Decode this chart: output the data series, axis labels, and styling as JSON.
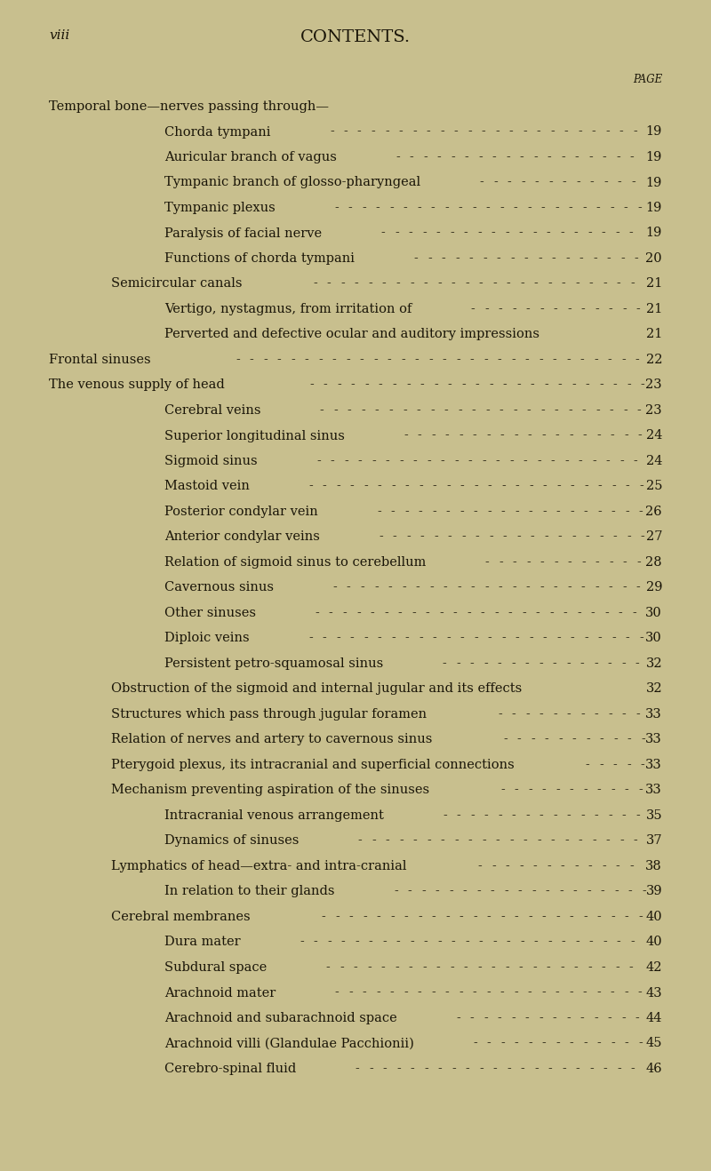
{
  "background_color": "#c8bf8e",
  "page_num": "viii",
  "title": "CONTENTS.",
  "page_label": "PAGE",
  "entries": [
    {
      "text": "Temporal bone—nerves passing through—",
      "indent": 0,
      "page": "",
      "dots": false
    },
    {
      "text": "Chorda tympani",
      "indent": 2,
      "page": "19",
      "dots": true
    },
    {
      "text": "Auricular branch of vagus",
      "indent": 2,
      "page": "19",
      "dots": true
    },
    {
      "text": "Tympanic branch of glosso-pharyngeal",
      "indent": 2,
      "page": "19",
      "dots": true
    },
    {
      "text": "Tympanic plexus",
      "indent": 2,
      "page": "19",
      "dots": true
    },
    {
      "text": "Paralysis of facial nerve",
      "indent": 2,
      "page": "19",
      "dots": true
    },
    {
      "text": "Functions of chorda tympani",
      "indent": 2,
      "page": "20",
      "dots": true
    },
    {
      "text": "Semicircular canals",
      "indent": 1,
      "page": "21",
      "dots": true
    },
    {
      "text": "Vertigo, nystagmus, from irritation of",
      "indent": 2,
      "page": "21",
      "dots": true
    },
    {
      "text": "Perverted and defective ocular and auditory impressions",
      "indent": 2,
      "page": "21",
      "dots": false
    },
    {
      "text": "Frontal sinuses",
      "indent": 0,
      "page": "22",
      "dots": true
    },
    {
      "text": "The venous supply of head",
      "indent": 0,
      "page": "23",
      "dots": true
    },
    {
      "text": "Cerebral veins",
      "indent": 2,
      "page": "23",
      "dots": true
    },
    {
      "text": "Superior longitudinal sinus",
      "indent": 2,
      "page": "24",
      "dots": true
    },
    {
      "text": "Sigmoid sinus",
      "indent": 2,
      "page": "24",
      "dots": true
    },
    {
      "text": "Mastoid vein",
      "indent": 2,
      "page": "25",
      "dots": true
    },
    {
      "text": "Posterior condylar vein",
      "indent": 2,
      "page": "26",
      "dots": true
    },
    {
      "text": "Anterior condylar veins",
      "indent": 2,
      "page": "27",
      "dots": true
    },
    {
      "text": "Relation of sigmoid sinus to cerebellum",
      "indent": 2,
      "page": "28",
      "dots": true
    },
    {
      "text": "Cavernous sinus",
      "indent": 2,
      "page": "29",
      "dots": true
    },
    {
      "text": "Other sinuses",
      "indent": 2,
      "page": "30",
      "dots": true
    },
    {
      "text": "Diploic veins",
      "indent": 2,
      "page": "30",
      "dots": true
    },
    {
      "text": "Persistent petro-squamosal sinus",
      "indent": 2,
      "page": "32",
      "dots": true
    },
    {
      "text": "Obstruction of the sigmoid and internal jugular and its effects",
      "indent": 1,
      "page": "32",
      "dots": false
    },
    {
      "text": "Structures which pass through jugular foramen",
      "indent": 1,
      "page": "33",
      "dots": true
    },
    {
      "text": "Relation of nerves and artery to cavernous sinus",
      "indent": 1,
      "page": "33",
      "dots": true
    },
    {
      "text": "Pterygoid plexus, its intracranial and superficial connections",
      "indent": 1,
      "page": "33",
      "dots": true
    },
    {
      "text": "Mechanism preventing aspiration of the sinuses",
      "indent": 1,
      "page": "33",
      "dots": true
    },
    {
      "text": "Intracranial venous arrangement",
      "indent": 2,
      "page": "35",
      "dots": true
    },
    {
      "text": "Dynamics of sinuses",
      "indent": 2,
      "page": "37",
      "dots": true
    },
    {
      "text": "Lymphatics of head—extra- and intra-cranial",
      "indent": 1,
      "page": "38",
      "dots": true
    },
    {
      "text": "In relation to their glands",
      "indent": 2,
      "page": "39",
      "dots": true
    },
    {
      "text": "Cerebral membranes",
      "indent": 1,
      "page": "40",
      "dots": true
    },
    {
      "text": "Dura mater",
      "indent": 2,
      "page": "40",
      "dots": true
    },
    {
      "text": "Subdural space",
      "indent": 2,
      "page": "42",
      "dots": true
    },
    {
      "text": "Arachnoid mater",
      "indent": 2,
      "page": "43",
      "dots": true
    },
    {
      "text": "Arachnoid and subarachnoid space",
      "indent": 2,
      "page": "44",
      "dots": true
    },
    {
      "text": "Arachnoid villi (Glandulae Pacchionii)",
      "indent": 2,
      "page": "45",
      "dots": true
    },
    {
      "text": "Cerebro-spinal fluid",
      "indent": 2,
      "page": "46",
      "dots": true
    }
  ],
  "text_color": "#1a1508",
  "font_size": 10.5,
  "title_font_size": 14,
  "page_num_font_size": 11
}
